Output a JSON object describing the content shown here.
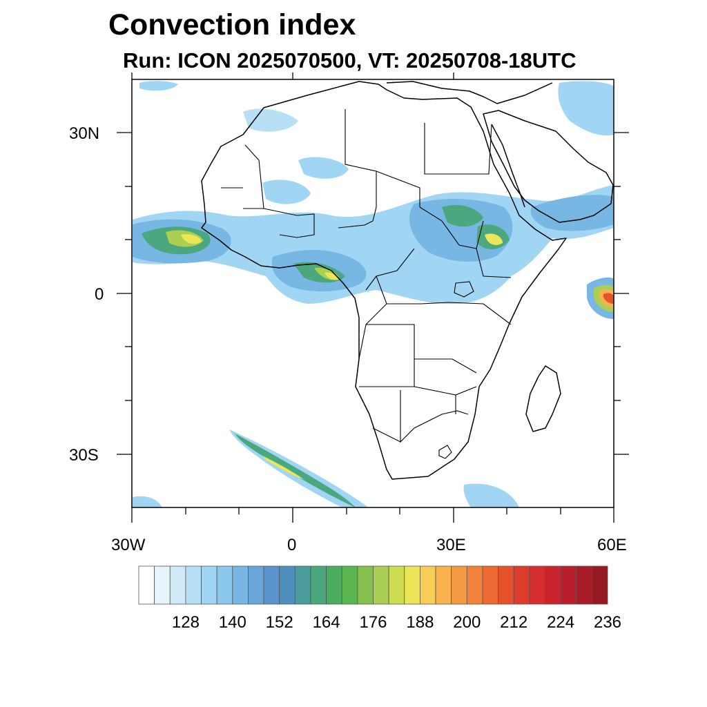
{
  "title": "Convection index",
  "subtitle": "Run: ICON 2025070500,  VT: 20250708-18UTC",
  "map": {
    "lon_range": [
      -30,
      60
    ],
    "lat_range": [
      -40,
      40
    ],
    "x_ticks": [
      "30W",
      "0",
      "30E",
      "60E"
    ],
    "y_ticks": [
      "30N",
      "0",
      "30S"
    ],
    "coastline_color": "#000000",
    "region": "Africa"
  },
  "colorbar": {
    "labels": [
      "128",
      "140",
      "152",
      "164",
      "176",
      "188",
      "200",
      "212",
      "224",
      "236"
    ],
    "levels": [
      116,
      120,
      124,
      128,
      132,
      136,
      140,
      144,
      148,
      152,
      156,
      160,
      164,
      168,
      172,
      176,
      180,
      184,
      188,
      192,
      196,
      200,
      204,
      208,
      212,
      216,
      220,
      224,
      228,
      232,
      236
    ],
    "colors": [
      "#ffffff",
      "#e8f4fb",
      "#cfe9f7",
      "#b8e0f5",
      "#a0d6f3",
      "#8cc7ee",
      "#78b6e4",
      "#6aa5da",
      "#5b93ce",
      "#4e8fbe",
      "#4b9c9c",
      "#4aa77e",
      "#4aae5e",
      "#5ab54e",
      "#86c04e",
      "#aacf52",
      "#cfdc55",
      "#ede658",
      "#f8cd55",
      "#f8b24f",
      "#f49a45",
      "#f18239",
      "#ec6a31",
      "#e5532d",
      "#de3b2d",
      "#d62d2e",
      "#c8242e",
      "#b81e2c",
      "#a81b28",
      "#961a22"
    ]
  }
}
